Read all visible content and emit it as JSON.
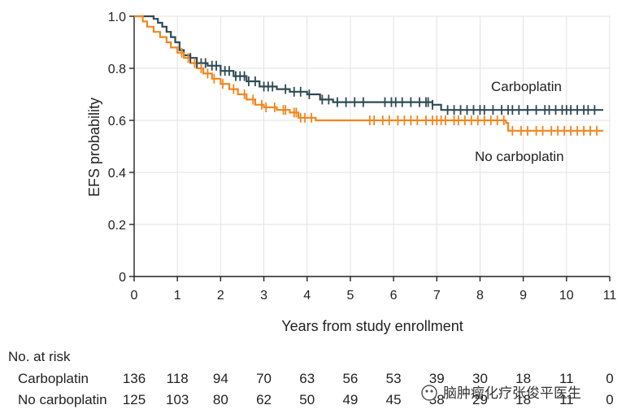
{
  "chart_data": {
    "type": "line",
    "subtype": "kaplan-meier",
    "xlabel": "Years from study enrollment",
    "ylabel": "EFS probability",
    "xlim": [
      0,
      11
    ],
    "ylim": [
      0,
      1.0
    ],
    "xticks": [
      0,
      1,
      2,
      3,
      4,
      5,
      6,
      7,
      8,
      9,
      10,
      11
    ],
    "yticks": [
      0,
      0.2,
      0.4,
      0.6,
      0.8,
      1.0
    ],
    "ytick_labels": [
      "0",
      "0.2",
      "0.4",
      "0.6",
      "0.8",
      "1.0"
    ],
    "series": [
      {
        "name": "Carboplatin",
        "color": "#2f4a56",
        "steps": [
          [
            0,
            1.0
          ],
          [
            0.45,
            0.99
          ],
          [
            0.55,
            0.975
          ],
          [
            0.65,
            0.96
          ],
          [
            0.75,
            0.94
          ],
          [
            0.85,
            0.92
          ],
          [
            0.95,
            0.9
          ],
          [
            1.05,
            0.87
          ],
          [
            1.15,
            0.85
          ],
          [
            1.3,
            0.84
          ],
          [
            1.45,
            0.82
          ],
          [
            1.7,
            0.81
          ],
          [
            2.0,
            0.79
          ],
          [
            2.3,
            0.77
          ],
          [
            2.6,
            0.75
          ],
          [
            2.9,
            0.73
          ],
          [
            3.3,
            0.72
          ],
          [
            3.6,
            0.71
          ],
          [
            4.0,
            0.7
          ],
          [
            4.3,
            0.68
          ],
          [
            4.6,
            0.67
          ],
          [
            6.9,
            0.66
          ],
          [
            7.1,
            0.64
          ]
        ],
        "end": 10.85,
        "censor": [
          1.3,
          1.45,
          1.55,
          1.65,
          1.8,
          1.9,
          2.0,
          2.1,
          2.2,
          2.35,
          2.45,
          2.55,
          2.65,
          2.8,
          3.0,
          3.1,
          3.2,
          3.5,
          3.7,
          3.85,
          4.05,
          4.35,
          4.5,
          4.7,
          4.9,
          5.1,
          5.3,
          5.8,
          5.95,
          6.05,
          6.2,
          6.4,
          6.6,
          6.75,
          6.8,
          6.9,
          7.25,
          7.4,
          7.55,
          7.7,
          7.85,
          8.0,
          8.1,
          8.3,
          8.5,
          8.65,
          8.75,
          8.9,
          9.1,
          9.3,
          9.5,
          9.6,
          9.75,
          9.9,
          10.0,
          10.1,
          10.25,
          10.4,
          10.5,
          10.65
        ]
      },
      {
        "name": "No carboplatin",
        "color": "#f0861e",
        "steps": [
          [
            0,
            1.0
          ],
          [
            0.2,
            0.98
          ],
          [
            0.3,
            0.96
          ],
          [
            0.45,
            0.94
          ],
          [
            0.6,
            0.92
          ],
          [
            0.75,
            0.9
          ],
          [
            0.85,
            0.88
          ],
          [
            1.0,
            0.86
          ],
          [
            1.15,
            0.84
          ],
          [
            1.3,
            0.82
          ],
          [
            1.45,
            0.8
          ],
          [
            1.6,
            0.78
          ],
          [
            1.8,
            0.76
          ],
          [
            2.0,
            0.74
          ],
          [
            2.2,
            0.72
          ],
          [
            2.4,
            0.7
          ],
          [
            2.6,
            0.68
          ],
          [
            2.8,
            0.66
          ],
          [
            3.0,
            0.65
          ],
          [
            3.3,
            0.64
          ],
          [
            3.6,
            0.63
          ],
          [
            3.8,
            0.61
          ],
          [
            4.2,
            0.6
          ],
          [
            8.6,
            0.59
          ],
          [
            8.65,
            0.56
          ]
        ],
        "end": 10.85,
        "censor": [
          1.1,
          1.25,
          1.4,
          1.55,
          1.7,
          1.85,
          2.05,
          2.3,
          2.55,
          2.75,
          2.95,
          3.05,
          3.25,
          3.45,
          3.5,
          3.7,
          3.75,
          3.85,
          3.95,
          4.1,
          5.45,
          5.55,
          5.75,
          5.9,
          6.1,
          6.25,
          6.4,
          6.55,
          6.75,
          6.9,
          7.0,
          7.1,
          7.2,
          7.4,
          7.5,
          7.65,
          7.8,
          7.95,
          8.1,
          8.25,
          8.4,
          8.55,
          8.75,
          8.95,
          9.1,
          9.3,
          9.45,
          9.65,
          9.8,
          9.95,
          10.1,
          10.25,
          10.4,
          10.55,
          10.7
        ]
      }
    ],
    "annotations": [
      {
        "series": "Carboplatin",
        "text": "Carboplatin"
      },
      {
        "series": "No carboplatin",
        "text": "No carboplatin"
      }
    ]
  },
  "risk_table": {
    "title": "No. at risk",
    "rows": [
      {
        "label": "Carboplatin",
        "values": [
          "136",
          "118",
          "94",
          "70",
          "63",
          "56",
          "53",
          "39",
          "30",
          "18",
          "11",
          "0"
        ]
      },
      {
        "label": "No carboplatin",
        "values": [
          "125",
          "103",
          "80",
          "62",
          "50",
          "49",
          "45",
          "38",
          "29",
          "18",
          "11",
          "0"
        ]
      }
    ]
  },
  "watermark": {
    "text": "脑肿瘤化疗张俊平医生"
  }
}
